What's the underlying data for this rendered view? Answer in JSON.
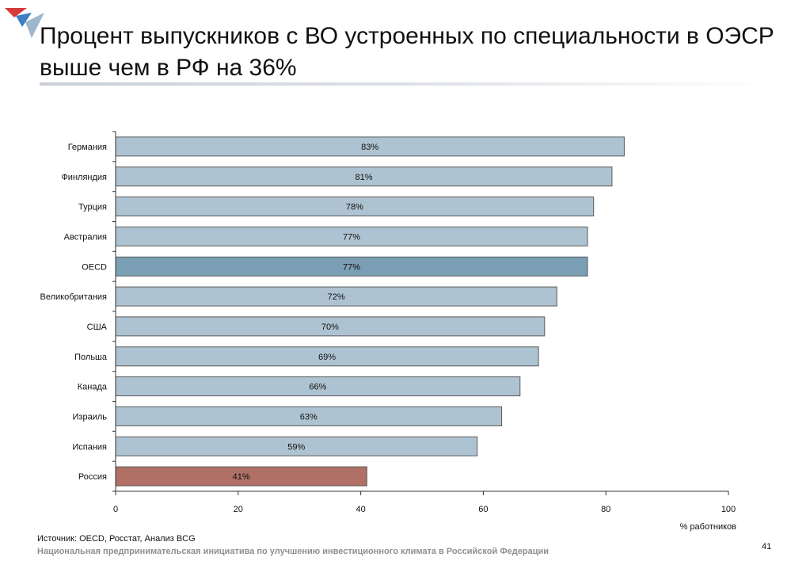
{
  "title": "Процент выпускников с ВО устроенных по специальности в ОЭСР выше чем в РФ на 36%",
  "chart_data": {
    "type": "bar",
    "orientation": "horizontal",
    "categories": [
      "Германия",
      "Финляндия",
      "Турция",
      "Австралия",
      "OECD",
      "Великобритания",
      "США",
      "Польша",
      "Канада",
      "Израиль",
      "Испания",
      "Россия"
    ],
    "values": [
      83,
      81,
      78,
      77,
      77,
      72,
      70,
      69,
      66,
      63,
      59,
      41
    ],
    "data_labels": [
      "83%",
      "81%",
      "78%",
      "77%",
      "77%",
      "72%",
      "70%",
      "69%",
      "66%",
      "63%",
      "59%",
      "41%"
    ],
    "bar_colors": [
      "#aec3d1",
      "#aec3d1",
      "#aec3d1",
      "#aec3d1",
      "#7a9eb3",
      "#aec3d1",
      "#aec3d1",
      "#aec3d1",
      "#aec3d1",
      "#aec3d1",
      "#aec3d1",
      "#b07066"
    ],
    "xlim": [
      0,
      100
    ],
    "xticks": [
      0,
      20,
      40,
      60,
      80,
      100
    ],
    "xlabel": "% работников",
    "ylabel": "",
    "grid": false,
    "legend": "none"
  },
  "footer": {
    "source": "Источник: OECD, Росстат, Анализ BCG",
    "org": "Национальная предпринимательская инициатива по улучшению инвестиционного климата в Российской Федерации",
    "page_number": "41"
  },
  "colors": {
    "bar_default": "#aec3d1",
    "bar_oecd": "#7a9eb3",
    "bar_russia": "#b07066",
    "bar_stroke": "#5b5b5b",
    "logo_red": "#d63a3a",
    "logo_blue": "#3d7fc1"
  }
}
